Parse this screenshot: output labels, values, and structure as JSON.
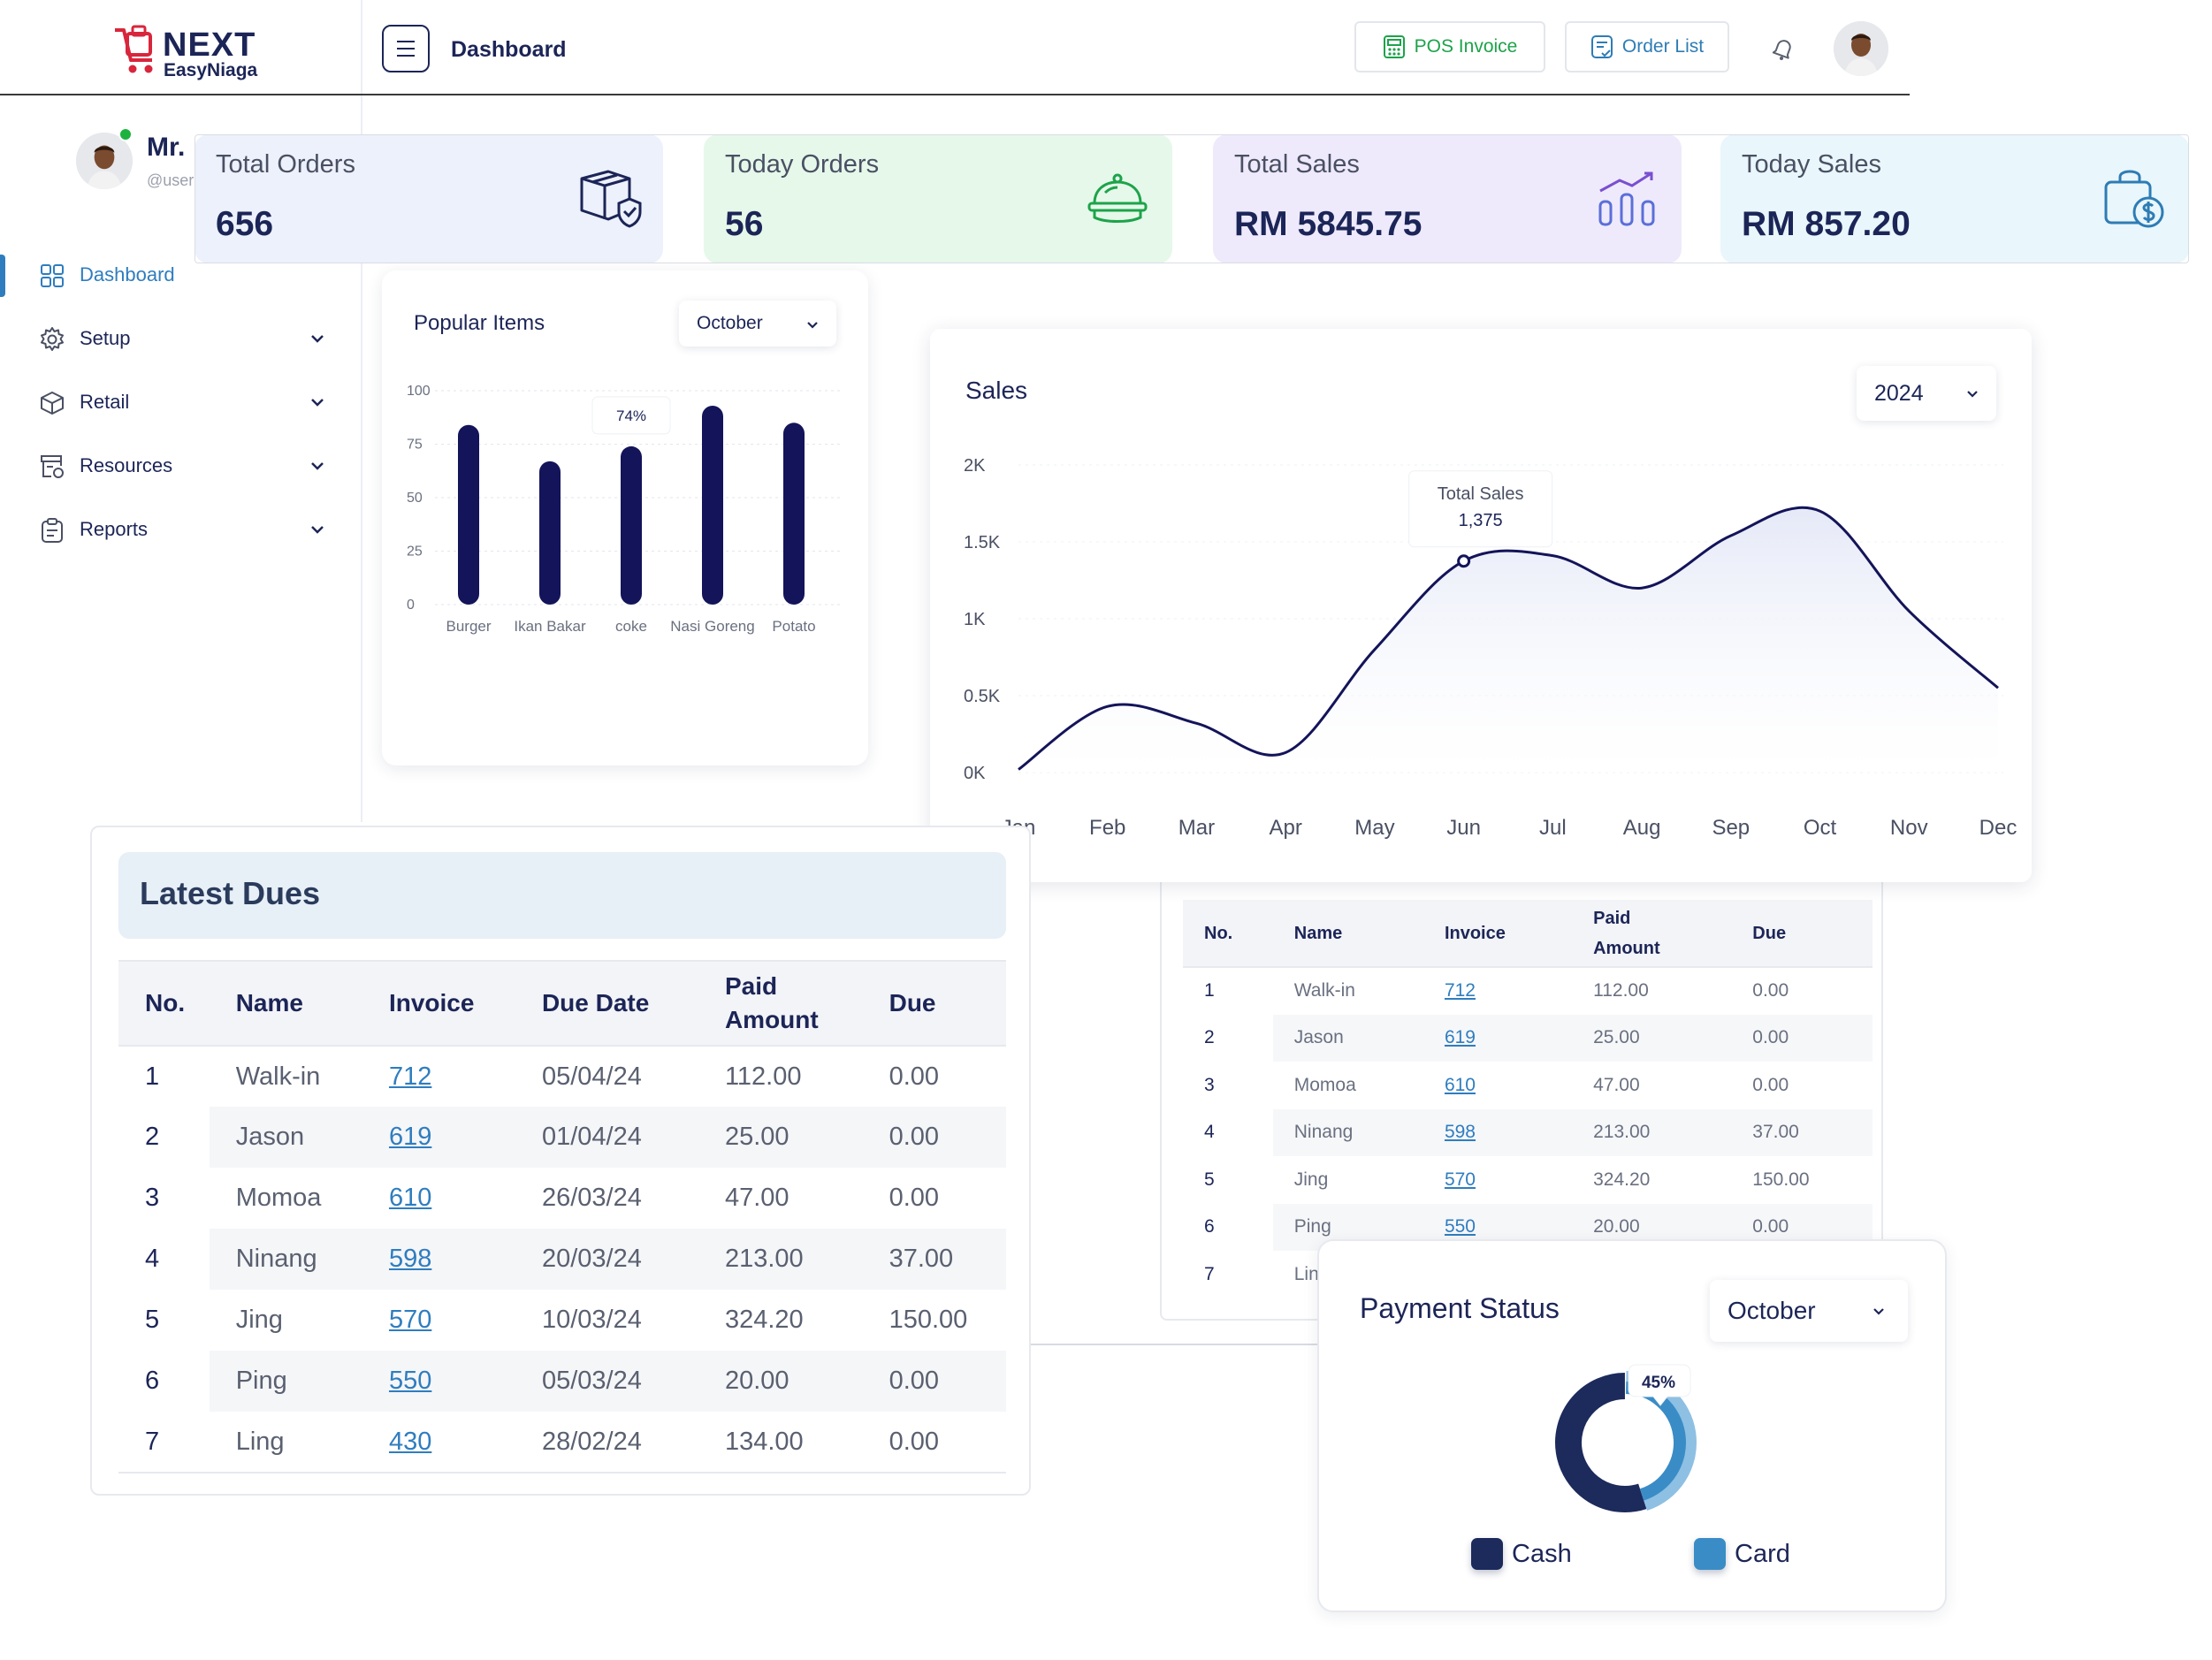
{
  "brand": {
    "name": "NEXT",
    "sub": "EasyNiaga"
  },
  "header": {
    "title": "Dashboard",
    "pos_invoice": "POS Invoice",
    "order_list": "Order List"
  },
  "user": {
    "name": "Mr.",
    "handle": "@user"
  },
  "sidebar": {
    "items": [
      {
        "label": "Dashboard",
        "icon": "grid-icon",
        "active": true
      },
      {
        "label": "Setup",
        "icon": "gear-icon"
      },
      {
        "label": "Retail",
        "icon": "box-icon"
      },
      {
        "label": "Resources",
        "icon": "resources-icon"
      },
      {
        "label": "Reports",
        "icon": "clipboard-icon"
      }
    ]
  },
  "stats": [
    {
      "title": "Total Orders",
      "value": "656",
      "icon": "package-check-icon"
    },
    {
      "title": "Today Orders",
      "value": "56",
      "icon": "serving-dish-icon"
    },
    {
      "title": "Total Sales",
      "value": "RM 5845.75",
      "icon": "bar-trend-icon"
    },
    {
      "title": "Today Sales",
      "value": "RM 857.20",
      "icon": "money-bag-icon"
    }
  ],
  "popular": {
    "title": "Popular Items",
    "month": "October",
    "tooltip": "74%"
  },
  "sales": {
    "title": "Sales",
    "year": "2024",
    "tooltip_label": "Total Sales",
    "tooltip_value": "1,375"
  },
  "dues": {
    "title": "Latest Dues",
    "columns": [
      "No.",
      "Name",
      "Invoice",
      "Due Date",
      "Paid Amount",
      "Due"
    ],
    "rows": [
      [
        "1",
        "Walk-in",
        "712",
        "05/04/24",
        "112.00",
        "0.00"
      ],
      [
        "2",
        "Jason",
        "619",
        "01/04/24",
        "25.00",
        "0.00"
      ],
      [
        "3",
        "Momoa",
        "610",
        "26/03/24",
        "47.00",
        "0.00"
      ],
      [
        "4",
        "Ninang",
        "598",
        "20/03/24",
        "213.00",
        "37.00"
      ],
      [
        "5",
        "Jing",
        "570",
        "10/03/24",
        "324.20",
        "150.00"
      ],
      [
        "6",
        "Ping",
        "550",
        "05/03/24",
        "20.00",
        "0.00"
      ],
      [
        "7",
        "Ling",
        "430",
        "28/02/24",
        "134.00",
        "0.00"
      ]
    ]
  },
  "dues_small": {
    "columns": [
      "No.",
      "Name",
      "Invoice",
      "Paid Amount",
      "Due"
    ],
    "rows": [
      [
        "1",
        "Walk-in",
        "712",
        "112.00",
        "0.00"
      ],
      [
        "2",
        "Jason",
        "619",
        "25.00",
        "0.00"
      ],
      [
        "3",
        "Momoa",
        "610",
        "47.00",
        "0.00"
      ],
      [
        "4",
        "Ninang",
        "598",
        "213.00",
        "37.00"
      ],
      [
        "5",
        "Jing",
        "570",
        "324.20",
        "150.00"
      ],
      [
        "6",
        "Ping",
        "550",
        "20.00",
        "0.00"
      ],
      [
        "7",
        "Ling",
        "",
        "",
        ""
      ]
    ]
  },
  "payment": {
    "title": "Payment Status",
    "month": "October",
    "label": "45%",
    "legend": [
      {
        "name": "Cash",
        "color": "#1c2a5c"
      },
      {
        "name": "Card",
        "color": "#3a8cc6"
      }
    ]
  },
  "colors": {
    "navy": "#14145a",
    "accent": "#2f7dbf",
    "green": "#1da34a",
    "online": "#1db23f"
  },
  "chart_data": [
    {
      "type": "bar",
      "title": "Popular Items",
      "categories": [
        "Burger",
        "Ikan Bakar",
        "coke",
        "Nasi Goreng",
        "Potato"
      ],
      "values": [
        84,
        67,
        74,
        93,
        85
      ],
      "ylim": [
        0,
        100
      ],
      "yticks": [
        "0",
        "25",
        "50",
        "75",
        "100"
      ],
      "annotation": "74%"
    },
    {
      "type": "area",
      "title": "Sales",
      "categories": [
        "Jan",
        "Feb",
        "Mar",
        "Apr",
        "May",
        "Jun",
        "Jul",
        "Aug",
        "Sep",
        "Oct",
        "Nov",
        "Dec"
      ],
      "values": [
        20,
        430,
        320,
        130,
        800,
        1375,
        1410,
        1200,
        1540,
        1700,
        1050,
        550
      ],
      "ylim": [
        0,
        2000
      ],
      "yticks": [
        "0K",
        "0.5K",
        "1K",
        "1.5K",
        "2K"
      ],
      "tooltip": {
        "label": "Total Sales",
        "value": "1,375"
      }
    },
    {
      "type": "pie",
      "title": "Payment Status",
      "series": [
        {
          "name": "Cash",
          "value": 55
        },
        {
          "name": "Card",
          "value": 45
        }
      ],
      "annotation": "45%"
    }
  ]
}
